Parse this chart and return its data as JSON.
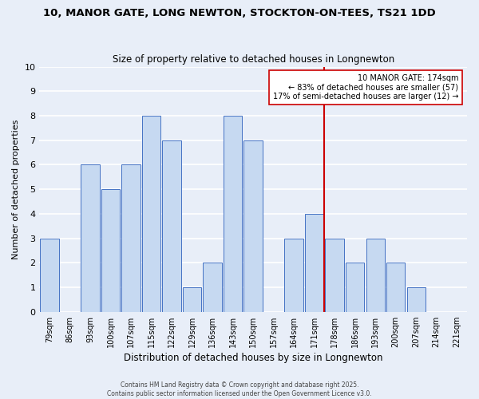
{
  "title": "10, MANOR GATE, LONG NEWTON, STOCKTON-ON-TEES, TS21 1DD",
  "subtitle": "Size of property relative to detached houses in Longnewton",
  "xlabel": "Distribution of detached houses by size in Longnewton",
  "ylabel": "Number of detached properties",
  "categories": [
    "79sqm",
    "86sqm",
    "93sqm",
    "100sqm",
    "107sqm",
    "115sqm",
    "122sqm",
    "129sqm",
    "136sqm",
    "143sqm",
    "150sqm",
    "157sqm",
    "164sqm",
    "171sqm",
    "178sqm",
    "186sqm",
    "193sqm",
    "200sqm",
    "207sqm",
    "214sqm",
    "221sqm"
  ],
  "values": [
    3,
    0,
    6,
    5,
    6,
    8,
    7,
    1,
    2,
    8,
    7,
    0,
    3,
    4,
    3,
    2,
    3,
    2,
    1,
    0,
    0
  ],
  "bar_color": "#c6d9f1",
  "bar_edge_color": "#4472c4",
  "red_line_color": "#cc0000",
  "annotation_line1": "10 MANOR GATE: 174sqm",
  "annotation_line2": "← 83% of detached houses are smaller (57)",
  "annotation_line3": "17% of semi-detached houses are larger (12) →",
  "ylim": [
    0,
    10
  ],
  "yticks": [
    0,
    1,
    2,
    3,
    4,
    5,
    6,
    7,
    8,
    9,
    10
  ],
  "background_color": "#e8eef8",
  "grid_color": "#ffffff",
  "footer_line1": "Contains HM Land Registry data © Crown copyright and database right 2025.",
  "footer_line2": "Contains public sector information licensed under the Open Government Licence v3.0."
}
